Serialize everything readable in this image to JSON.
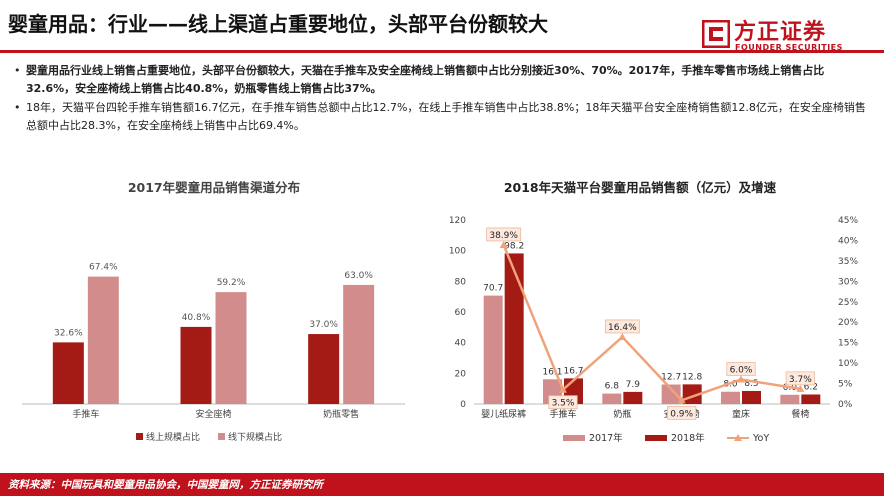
{
  "title": "婴童用品：行业——线上渠道占重要地位，头部平台份额较大",
  "logo": {
    "name": "方正证券",
    "sub": "FOUNDER SECURITIES"
  },
  "bullets": [
    {
      "text": "婴童用品行业线上销售占重要地位，头部平台份额较大，天猫在手推车及安全座椅线上销售额中占比分别接近30%、70%。2017年，手推车零售市场线上销售占比32.6%，安全座椅线上销售占比40.8%，奶瓶零售线上销售占比37%。",
      "bold": true
    },
    {
      "text": "18年，天猫平台四轮手推车销售额16.7亿元，在手推车销售总额中占比12.7%，在线上手推车销售中占比38.8%；18年天猫平台安全座椅销售额12.8亿元，在安全座椅销售总额中占比28.3%，在安全座椅线上销售中占比69.4%。",
      "bold": false
    }
  ],
  "footer": "资料来源：中国玩具和婴童用品协会，中国婴童网，方正证券研究所",
  "colors": {
    "dark": "#a31b14",
    "light": "#d28c8c",
    "yoy": "#f0a27a",
    "brand": "#c0121c"
  },
  "chart_data": [
    {
      "type": "bar",
      "title": "2017年婴童用品销售渠道分布",
      "categories": [
        "手推车",
        "安全座椅",
        "奶瓶零售"
      ],
      "series": [
        {
          "name": "线上规模占比",
          "values": [
            32.6,
            40.8,
            37.0
          ],
          "labels": [
            "32.6%",
            "40.8%",
            "37.0%"
          ]
        },
        {
          "name": "线下规模占比",
          "values": [
            67.4,
            59.2,
            63.0
          ],
          "labels": [
            "67.4%",
            "59.2%",
            "63.0%"
          ]
        }
      ],
      "ylim": [
        0,
        100
      ],
      "legend_position": "bottom"
    },
    {
      "type": "bar",
      "title": "2018年天猫平台婴童用品销售额（亿元）及增速",
      "categories": [
        "婴儿纸尿裤",
        "手推车",
        "奶瓶",
        "安全座椅",
        "童床",
        "餐椅"
      ],
      "series": [
        {
          "name": "2017年",
          "values": [
            70.7,
            16.1,
            6.8,
            12.7,
            8.0,
            6.0
          ],
          "labels": [
            "70.7",
            "16.1",
            "6.8",
            "12.7",
            "8.0",
            "6.0"
          ]
        },
        {
          "name": "2018年",
          "values": [
            98.2,
            16.7,
            7.9,
            12.8,
            8.5,
            6.2
          ],
          "labels": [
            "98.2",
            "16.7",
            "7.9",
            "12.8",
            "8.5",
            "6.2"
          ]
        },
        {
          "name": "YoY",
          "values": [
            38.9,
            3.5,
            16.4,
            0.9,
            6.0,
            3.7
          ],
          "labels": [
            "38.9%",
            "3.5%",
            "16.4%",
            "0.9%",
            "6.0%",
            "3.7%"
          ]
        }
      ],
      "y_left": {
        "ylim": [
          0,
          120
        ],
        "ticks": [
          "0",
          "20",
          "40",
          "60",
          "80",
          "100",
          "120"
        ]
      },
      "y_right": {
        "ylim": [
          0,
          45
        ],
        "ticks": [
          "0%",
          "5%",
          "10%",
          "15%",
          "20%",
          "25%",
          "30%",
          "35%",
          "40%",
          "45%"
        ]
      },
      "legend_position": "bottom"
    }
  ]
}
